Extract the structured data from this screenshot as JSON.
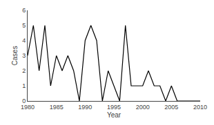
{
  "chart_data": {
    "type": "line",
    "x": [
      1980,
      1981,
      1982,
      1983,
      1984,
      1985,
      1986,
      1987,
      1988,
      1989,
      1990,
      1991,
      1992,
      1993,
      1994,
      1995,
      1996,
      1997,
      1998,
      1999,
      2000,
      2001,
      2002,
      2003,
      2004,
      2005,
      2006,
      2007,
      2008,
      2009,
      2010
    ],
    "values": [
      3,
      5,
      2,
      5,
      1,
      3,
      2,
      3,
      2,
      0,
      4,
      5,
      4,
      0,
      2,
      1,
      0,
      5,
      1,
      1,
      1,
      2,
      1,
      1,
      0,
      1,
      0,
      0,
      0,
      0,
      0
    ],
    "xlim": [
      1980,
      2010
    ],
    "ylim": [
      0,
      6
    ],
    "xticks": [
      1980,
      1985,
      1990,
      1995,
      2000,
      2005,
      2010
    ],
    "yticks": [
      0,
      1,
      2,
      3,
      4,
      5,
      6
    ],
    "xlabel": "Year",
    "ylabel": "Cases",
    "color": "#000000",
    "grid": false
  }
}
